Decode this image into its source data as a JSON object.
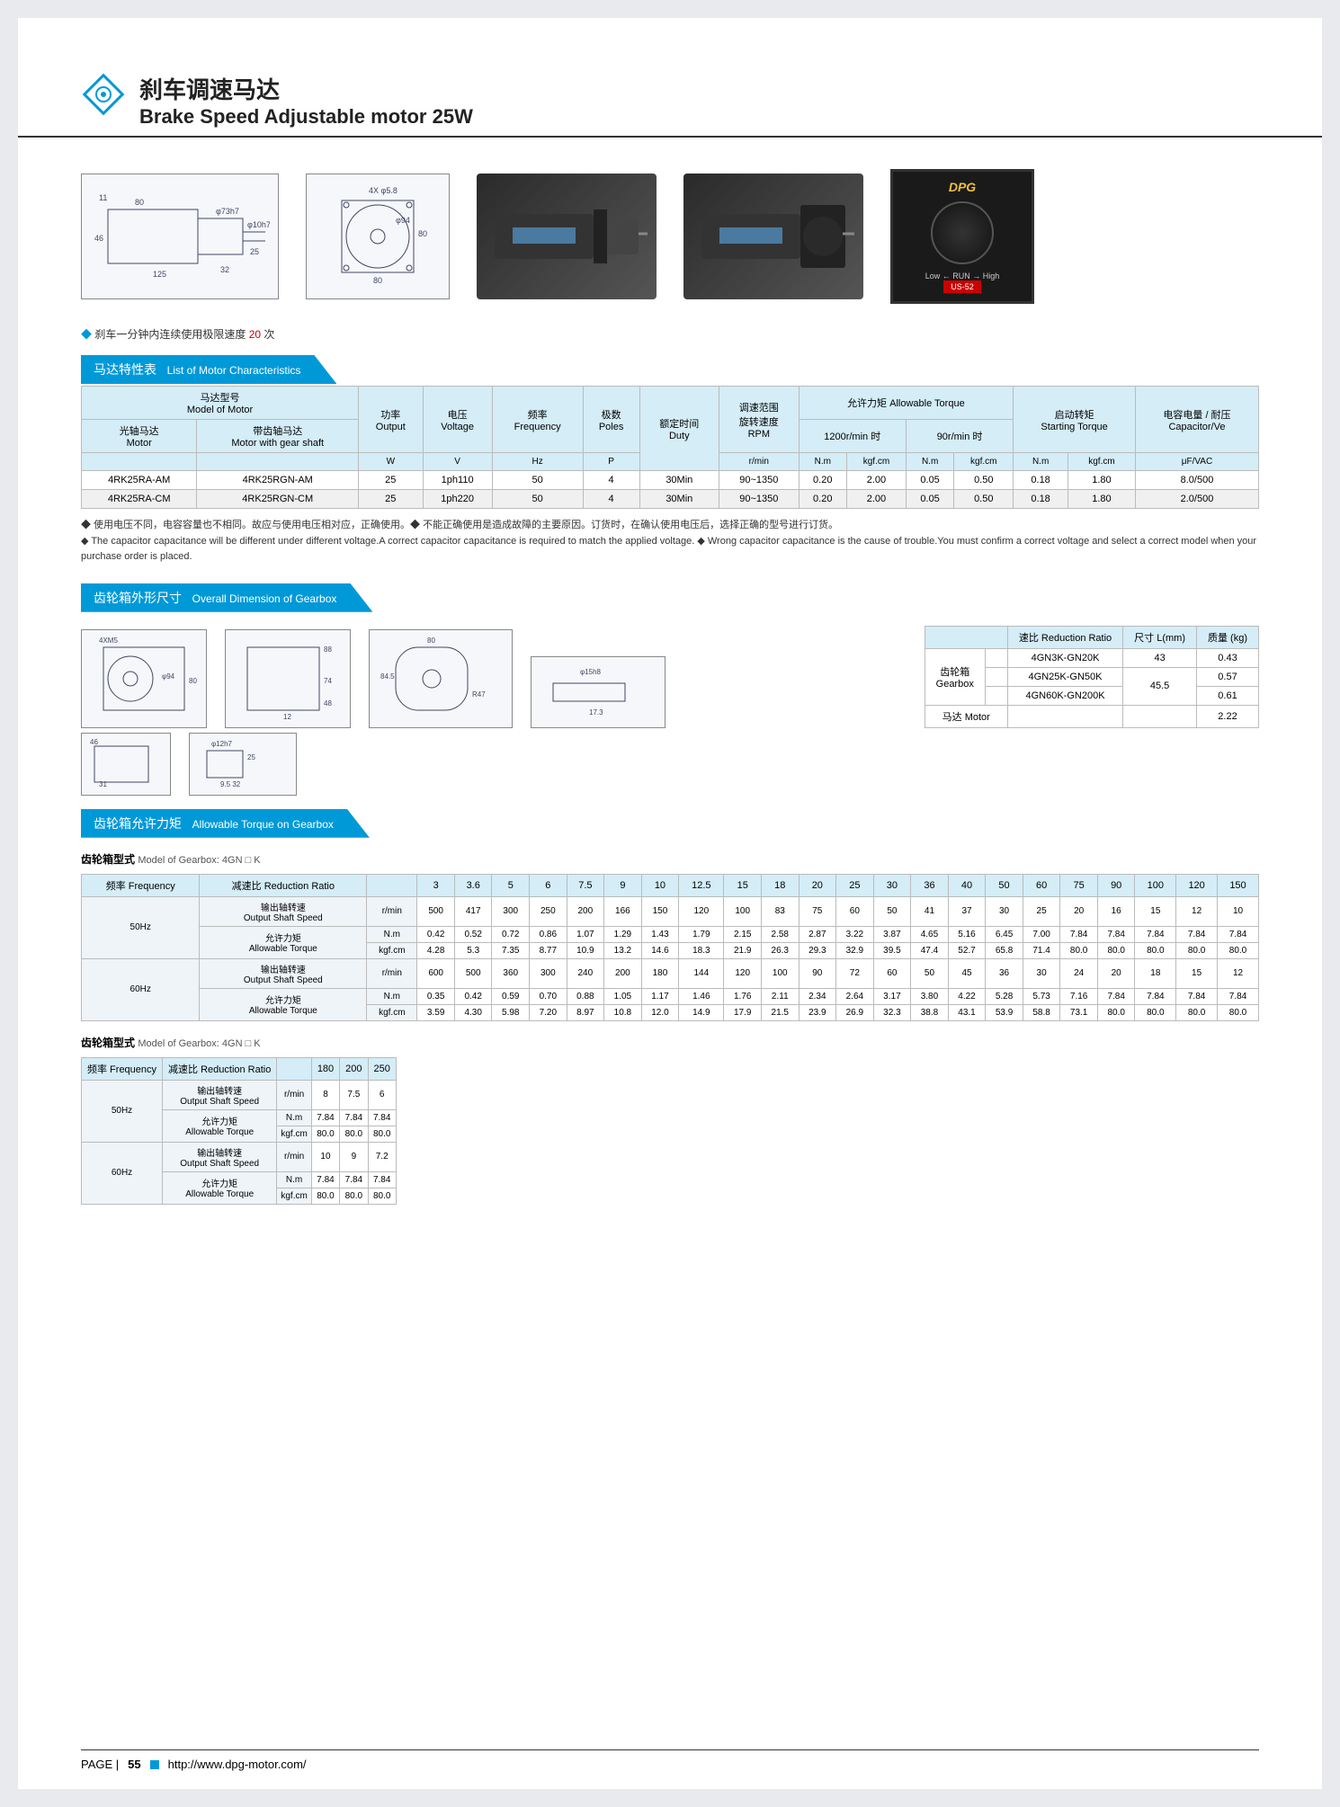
{
  "header": {
    "title_cn": "刹车调速马达",
    "title_en": "Brake Speed Adjustable motor 25W"
  },
  "controller_brand": "DPG",
  "controller_label": "US-52",
  "note1_prefix": "◆",
  "note1_text": "刹车一分钟内连续使用极限速度 ",
  "note1_value": "20",
  "note1_suffix": " 次",
  "section1_cn": "马达特性表",
  "section1_en": "List of Motor Characteristics",
  "motor_table": {
    "headers": {
      "model": "马达型号\nModel of Motor",
      "output": "功率\nOutput",
      "voltage": "电压\nVoltage",
      "freq": "频率\nFrequency",
      "poles": "极数\nPoles",
      "duty": "额定时间\nDuty",
      "rpm": "调速范围\n旋转速度\nRPM",
      "allow_torque": "允许力矩  Allowable Torque",
      "start_torque": "启动转矩\nStarting Torque",
      "capacitor": "电容电量 / 耐压\nCapacitor/Ve",
      "motor_shaft": "光轴马达\nMotor",
      "gear_shaft": "带齿轴马达\nMotor with gear shaft",
      "t1200": "1200r/min 时",
      "t90": "90r/min 时",
      "w": "W",
      "v": "V",
      "hz": "Hz",
      "p": "P",
      "rmin": "r/min",
      "nm": "N.m",
      "kgfcm": "kgf.cm",
      "ufvac": "μF/VAC"
    },
    "rows": [
      {
        "m1": "4RK25RA-AM",
        "m2": "4RK25RGN-AM",
        "out": "25",
        "v": "1ph110",
        "hz": "50",
        "p": "4",
        "duty": "30Min",
        "rpm": "90~1350",
        "a1": "0.20",
        "a2": "2.00",
        "b1": "0.05",
        "b2": "0.50",
        "s1": "0.18",
        "s2": "1.80",
        "cap": "8.0/500"
      },
      {
        "m1": "4RK25RA-CM",
        "m2": "4RK25RGN-CM",
        "out": "25",
        "v": "1ph220",
        "hz": "50",
        "p": "4",
        "duty": "30Min",
        "rpm": "90~1350",
        "a1": "0.20",
        "a2": "2.00",
        "b1": "0.05",
        "b2": "0.50",
        "s1": "0.18",
        "s2": "1.80",
        "cap": "2.0/500"
      }
    ]
  },
  "note2_cn": "◆ 使用电压不同，电容容量也不相同。故应与使用电压相对应，正确使用。◆ 不能正确使用是造成故障的主要原因。订货时，在确认使用电压后，选择正确的型号进行订货。",
  "note2_en": "◆ The capacitor capacitance will be different under different voltage.A correct capacitor capacitance is required to match the applied voltage. ◆ Wrong capacitor capacitance is the cause of trouble.You must confirm a correct voltage and select a correct model when your purchase order is placed.",
  "section2_cn": "齿轮箱外形尺寸",
  "section2_en": "Overall Dimension of Gearbox",
  "dim_table": {
    "headers": {
      "ratio": "速比 Reduction Ratio",
      "size": "尺寸 L(mm)",
      "weight": "质量 (kg)",
      "gearbox": "齿轮箱\nGearbox",
      "motor": "马达 Motor"
    },
    "rows": [
      {
        "ratio": "4GN3K-GN20K",
        "size": "43",
        "weight": "0.43"
      },
      {
        "ratio": "4GN25K-GN50K",
        "size": "45.5",
        "weight": "0.57"
      },
      {
        "ratio": "4GN60K-GN200K",
        "size": "",
        "weight": "0.61"
      }
    ],
    "motor_weight": "2.22"
  },
  "section3_cn": "齿轮箱允许力矩",
  "section3_en": "Allowable Torque on Gearbox",
  "gearbox_model_label": "齿轮箱型式",
  "gearbox_model_en": "Model of Gearbox: 4GN □ K",
  "torque_labels": {
    "freq": "频率 Frequency",
    "ratio": "减速比 Reduction Ratio",
    "speed_cn": "输出轴转速",
    "speed_en": "Output Shaft Speed",
    "torque_cn": "允许力矩",
    "torque_en": "Allowable Torque",
    "rmin": "r/min",
    "nm": "N.m",
    "kgfcm": "kgf.cm",
    "hz50": "50Hz",
    "hz60": "60Hz"
  },
  "torque1": {
    "ratios": [
      "3",
      "3.6",
      "5",
      "6",
      "7.5",
      "9",
      "10",
      "12.5",
      "15",
      "18",
      "20",
      "25",
      "30",
      "36",
      "40",
      "50",
      "60",
      "75",
      "90",
      "100",
      "120",
      "150"
    ],
    "hz50": {
      "speed": [
        "500",
        "417",
        "300",
        "250",
        "200",
        "166",
        "150",
        "120",
        "100",
        "83",
        "75",
        "60",
        "50",
        "41",
        "37",
        "30",
        "25",
        "20",
        "16",
        "15",
        "12",
        "10"
      ],
      "nm": [
        "0.42",
        "0.52",
        "0.72",
        "0.86",
        "1.07",
        "1.29",
        "1.43",
        "1.79",
        "2.15",
        "2.58",
        "2.87",
        "3.22",
        "3.87",
        "4.65",
        "5.16",
        "6.45",
        "7.00",
        "7.84",
        "7.84",
        "7.84",
        "7.84",
        "7.84"
      ],
      "kgfcm": [
        "4.28",
        "5.3",
        "7.35",
        "8.77",
        "10.9",
        "13.2",
        "14.6",
        "18.3",
        "21.9",
        "26.3",
        "29.3",
        "32.9",
        "39.5",
        "47.4",
        "52.7",
        "65.8",
        "71.4",
        "80.0",
        "80.0",
        "80.0",
        "80.0",
        "80.0"
      ]
    },
    "hz60": {
      "speed": [
        "600",
        "500",
        "360",
        "300",
        "240",
        "200",
        "180",
        "144",
        "120",
        "100",
        "90",
        "72",
        "60",
        "50",
        "45",
        "36",
        "30",
        "24",
        "20",
        "18",
        "15",
        "12"
      ],
      "nm": [
        "0.35",
        "0.42",
        "0.59",
        "0.70",
        "0.88",
        "1.05",
        "1.17",
        "1.46",
        "1.76",
        "2.11",
        "2.34",
        "2.64",
        "3.17",
        "3.80",
        "4.22",
        "5.28",
        "5.73",
        "7.16",
        "7.84",
        "7.84",
        "7.84",
        "7.84"
      ],
      "kgfcm": [
        "3.59",
        "4.30",
        "5.98",
        "7.20",
        "8.97",
        "10.8",
        "12.0",
        "14.9",
        "17.9",
        "21.5",
        "23.9",
        "26.9",
        "32.3",
        "38.8",
        "43.1",
        "53.9",
        "58.8",
        "73.1",
        "80.0",
        "80.0",
        "80.0",
        "80.0"
      ]
    }
  },
  "torque2": {
    "ratios": [
      "180",
      "200",
      "250"
    ],
    "hz50": {
      "speed": [
        "8",
        "7.5",
        "6"
      ],
      "nm": [
        "7.84",
        "7.84",
        "7.84"
      ],
      "kgfcm": [
        "80.0",
        "80.0",
        "80.0"
      ]
    },
    "hz60": {
      "speed": [
        "10",
        "9",
        "7.2"
      ],
      "nm": [
        "7.84",
        "7.84",
        "7.84"
      ],
      "kgfcm": [
        "80.0",
        "80.0",
        "80.0"
      ]
    }
  },
  "footer": {
    "page_label": "PAGE |",
    "page_num": "55",
    "url": "http://www.dpg-motor.com/"
  },
  "colors": {
    "primary": "#0099d8",
    "header_bg": "#d4edf7",
    "border": "#bbb"
  }
}
